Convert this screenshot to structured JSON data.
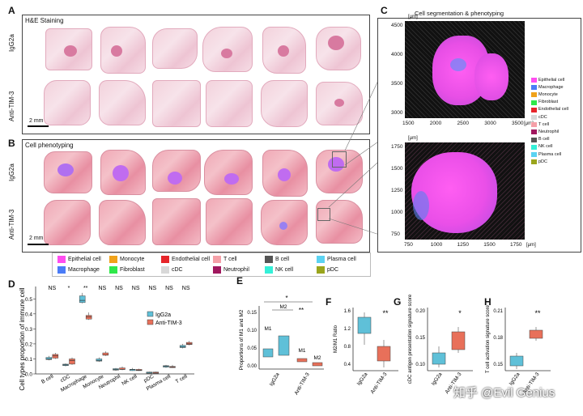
{
  "panelA": {
    "letter": "A",
    "title": "H&E Staining",
    "row1": "IgG2a",
    "row2": "Anti-TIM-3",
    "scale": "2 mm"
  },
  "panelB": {
    "letter": "B",
    "title": "Cell phenotyping",
    "row1": "IgG2a",
    "row2": "Anti-TIM-3",
    "scale": "2 mm"
  },
  "panelC": {
    "letter": "C",
    "title": "Cell segmentation & phenotyping",
    "unit": "[μm]",
    "top_y_ticks": [
      "4500",
      "4000",
      "3500",
      "3000"
    ],
    "top_x_ticks": [
      "1500",
      "2000",
      "2500",
      "3000",
      "3500"
    ],
    "bot_y_ticks": [
      "1750",
      "1500",
      "1250",
      "1000",
      "750"
    ],
    "bot_x_ticks": [
      "750",
      "1000",
      "1250",
      "1500",
      "1750"
    ]
  },
  "cell_types": [
    {
      "name": "Epithelial cell",
      "color": "#ff4df0"
    },
    {
      "name": "Macrophage",
      "color": "#4a7cf7"
    },
    {
      "name": "Monocyte",
      "color": "#f0a21a"
    },
    {
      "name": "Fibroblast",
      "color": "#2fe84a"
    },
    {
      "name": "Endothelial cell",
      "color": "#e6252a"
    },
    {
      "name": "cDC",
      "color": "#d8d8d8"
    },
    {
      "name": "T cell",
      "color": "#f5a0a8"
    },
    {
      "name": "Neutrophil",
      "color": "#a0175e"
    },
    {
      "name": "B cell",
      "color": "#555555"
    },
    {
      "name": "NK cell",
      "color": "#34f0d8"
    },
    {
      "name": "Plasma cell",
      "color": "#5bd3f2"
    },
    {
      "name": "pDC",
      "color": "#9aa51c"
    }
  ],
  "legend_order": [
    0,
    2,
    4,
    6,
    8,
    10,
    1,
    3,
    5,
    7,
    9,
    11
  ],
  "groups": {
    "ctrl": {
      "name": "IgG2a",
      "color": "#5fc0d8"
    },
    "trt": {
      "name": "Anti-TIM-3",
      "color": "#e8705a"
    }
  },
  "panelD": {
    "letter": "D",
    "ylabel": "Cell types proportion of immune cell",
    "categories": [
      "B cell",
      "cDC",
      "Macrophage",
      "Monocyte",
      "Neutrophil",
      "NK cell",
      "pDC",
      "Plasma cell",
      "T cell"
    ],
    "sig": [
      "NS",
      "*",
      "**",
      "NS",
      "NS",
      "NS",
      "NS",
      "NS",
      "NS"
    ],
    "yticks": [
      "0.0",
      "0.1",
      "0.2",
      "0.3",
      "0.4",
      "0.5"
    ],
    "ctrl": [
      [
        0.09,
        0.1,
        0.11,
        0.12
      ],
      [
        0.05,
        0.06,
        0.065,
        0.07
      ],
      [
        0.47,
        0.49,
        0.52,
        0.54
      ],
      [
        0.08,
        0.09,
        0.1,
        0.11
      ],
      [
        0.02,
        0.03,
        0.035,
        0.04
      ],
      [
        0.02,
        0.03,
        0.03,
        0.04
      ],
      [
        0.005,
        0.01,
        0.012,
        0.015
      ],
      [
        0.04,
        0.05,
        0.055,
        0.06
      ],
      [
        0.17,
        0.18,
        0.19,
        0.2
      ]
    ],
    "trt": [
      [
        0.1,
        0.12,
        0.13,
        0.14
      ],
      [
        0.06,
        0.09,
        0.1,
        0.11
      ],
      [
        0.36,
        0.38,
        0.39,
        0.41
      ],
      [
        0.12,
        0.125,
        0.14,
        0.15
      ],
      [
        0.025,
        0.03,
        0.04,
        0.05
      ],
      [
        0.02,
        0.025,
        0.03,
        0.035
      ],
      [
        0.008,
        0.01,
        0.012,
        0.015
      ],
      [
        0.04,
        0.045,
        0.05,
        0.06
      ],
      [
        0.19,
        0.2,
        0.21,
        0.22
      ]
    ]
  },
  "panelE": {
    "letter": "E",
    "ylabel": "Proportions of M1 and M2",
    "yticks": [
      "0.00",
      "0.05",
      "0.10",
      "0.15"
    ],
    "sig_top": "*",
    "sig_mid": "**",
    "m1": "M1",
    "m2": "M2",
    "xlabels": [
      "IgG2a",
      "Anti-TIM-3"
    ]
  },
  "panelF": {
    "letter": "F",
    "ylabel": "M2/M1 Ratio",
    "yticks": [
      "0.4",
      "0.8",
      "1.2",
      "1.6"
    ],
    "sig": "**",
    "xlabels": [
      "IgG2a",
      "Anti-TIM-3"
    ]
  },
  "panelG": {
    "letter": "G",
    "ylabel": "cDC antigen presentation signature score",
    "yticks": [
      "0.10",
      "0.15",
      "0.20"
    ],
    "sig": "*",
    "xlabels": [
      "IgG2a",
      "Anti-TIM-3"
    ]
  },
  "panelH": {
    "letter": "H",
    "ylabel": "T cell activation signature score",
    "yticks": [
      "0.15",
      "0.18",
      "0.21"
    ],
    "sig": "**",
    "xlabels": [
      "IgG2a",
      "Anti-TIM-3"
    ]
  },
  "watermark": "知乎 @Evil Genius"
}
